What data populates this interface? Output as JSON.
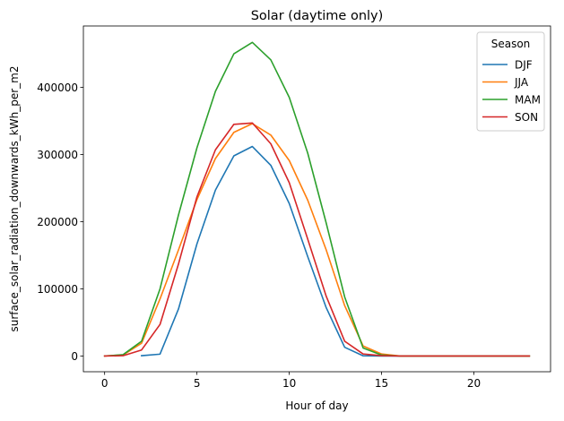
{
  "chart_data": {
    "type": "line",
    "title": "Solar (daytime only)",
    "xlabel": "Hour of day",
    "ylabel": "surface_solar_radiation_downwards_kWh_per_m2",
    "xlim": [
      -1.15,
      24.15
    ],
    "ylim": [
      -23400,
      491400
    ],
    "xticks": [
      0,
      5,
      10,
      15,
      20
    ],
    "yticks": [
      0,
      100000,
      200000,
      300000,
      400000
    ],
    "grid": false,
    "legend": {
      "title": "Season",
      "position": "top-right"
    },
    "series": [
      {
        "name": "DJF",
        "color": "#1f77b4",
        "x": [
          2,
          3,
          4,
          5,
          6,
          7,
          8,
          9,
          10,
          11,
          12,
          13,
          14,
          15,
          16,
          17,
          18,
          19,
          20,
          21,
          22,
          23
        ],
        "values": [
          500,
          2800,
          70000,
          167000,
          247000,
          298000,
          312000,
          284000,
          227000,
          148000,
          72000,
          13000,
          300,
          0,
          0,
          0,
          0,
          0,
          0,
          0,
          0,
          0
        ]
      },
      {
        "name": "JJA",
        "color": "#ff7f0e",
        "x": [
          0,
          1,
          2,
          3,
          4,
          5,
          6,
          7,
          8,
          9,
          10,
          11,
          12,
          13,
          14,
          15,
          16,
          17,
          18,
          19,
          20,
          21,
          22,
          23
        ],
        "values": [
          0,
          1500,
          19000,
          85000,
          158000,
          233000,
          294000,
          333000,
          346000,
          329000,
          291000,
          232000,
          158000,
          75000,
          15000,
          3000,
          0,
          0,
          0,
          0,
          0,
          0,
          0,
          0
        ]
      },
      {
        "name": "MAM",
        "color": "#2ca02c",
        "x": [
          0,
          1,
          2,
          3,
          4,
          5,
          6,
          7,
          8,
          9,
          10,
          11,
          12,
          13,
          14,
          15,
          16,
          17,
          18,
          19,
          20,
          21,
          22,
          23
        ],
        "values": [
          0,
          2000,
          22000,
          100000,
          210000,
          310000,
          394000,
          450000,
          467000,
          441000,
          385000,
          302000,
          198000,
          88000,
          12000,
          1500,
          0,
          0,
          0,
          0,
          0,
          0,
          0,
          0
        ]
      },
      {
        "name": "SON",
        "color": "#d62728",
        "x": [
          0,
          1,
          2,
          3,
          4,
          5,
          6,
          7,
          8,
          9,
          10,
          11,
          12,
          13,
          14,
          15,
          16,
          17,
          18,
          19,
          20,
          21,
          22,
          23
        ],
        "values": [
          0,
          500,
          9000,
          47000,
          137000,
          237000,
          307000,
          345000,
          347000,
          316000,
          258000,
          174000,
          89000,
          22000,
          3000,
          500,
          0,
          0,
          0,
          0,
          0,
          0,
          0,
          0
        ]
      }
    ]
  }
}
